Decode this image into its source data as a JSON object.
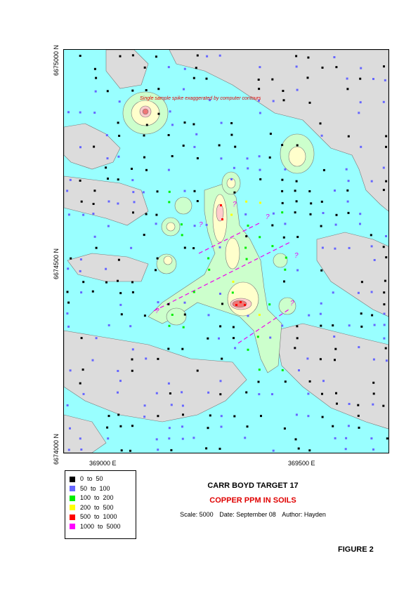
{
  "map": {
    "y_axis": {
      "top_label": "6675000 N",
      "mid_label": "6674500 N",
      "bottom_label": "6674000 N"
    },
    "x_axis": {
      "left_label": "369000 E",
      "right_label": "369500 E"
    },
    "annotation": "Single sample spike exaggerated by computer contours",
    "question_marks": [
      "?",
      "?",
      "?",
      "?",
      "?",
      "?"
    ],
    "colors": {
      "background_low": "#dcdcdc",
      "band_50_100": "#99ffff",
      "band_100_200": "#ccffcc",
      "band_200_500": "#ffffcc",
      "band_500_1000": "#ffcccc",
      "band_1000_plus": "#ee7777",
      "interpreted_line": "#ee00ee"
    }
  },
  "legend": {
    "items": [
      {
        "label": "0  to  50",
        "color": "#000000"
      },
      {
        "label": "50  to  100",
        "color": "#6666ff"
      },
      {
        "label": "100  to  200",
        "color": "#00ee00"
      },
      {
        "label": "200  to  500",
        "color": "#ffff00"
      },
      {
        "label": "500  to  1000",
        "color": "#ff0000"
      },
      {
        "label": "1000  to  5000",
        "color": "#ff00ff"
      }
    ]
  },
  "title_block": {
    "title": "CARR BOYD TARGET 17",
    "subtitle": "COPPER PPM IN SOILS",
    "scale": "Scale: 5000",
    "date": "Date: September 08",
    "author": "Author: Hayden"
  },
  "figure": "FIGURE 2"
}
